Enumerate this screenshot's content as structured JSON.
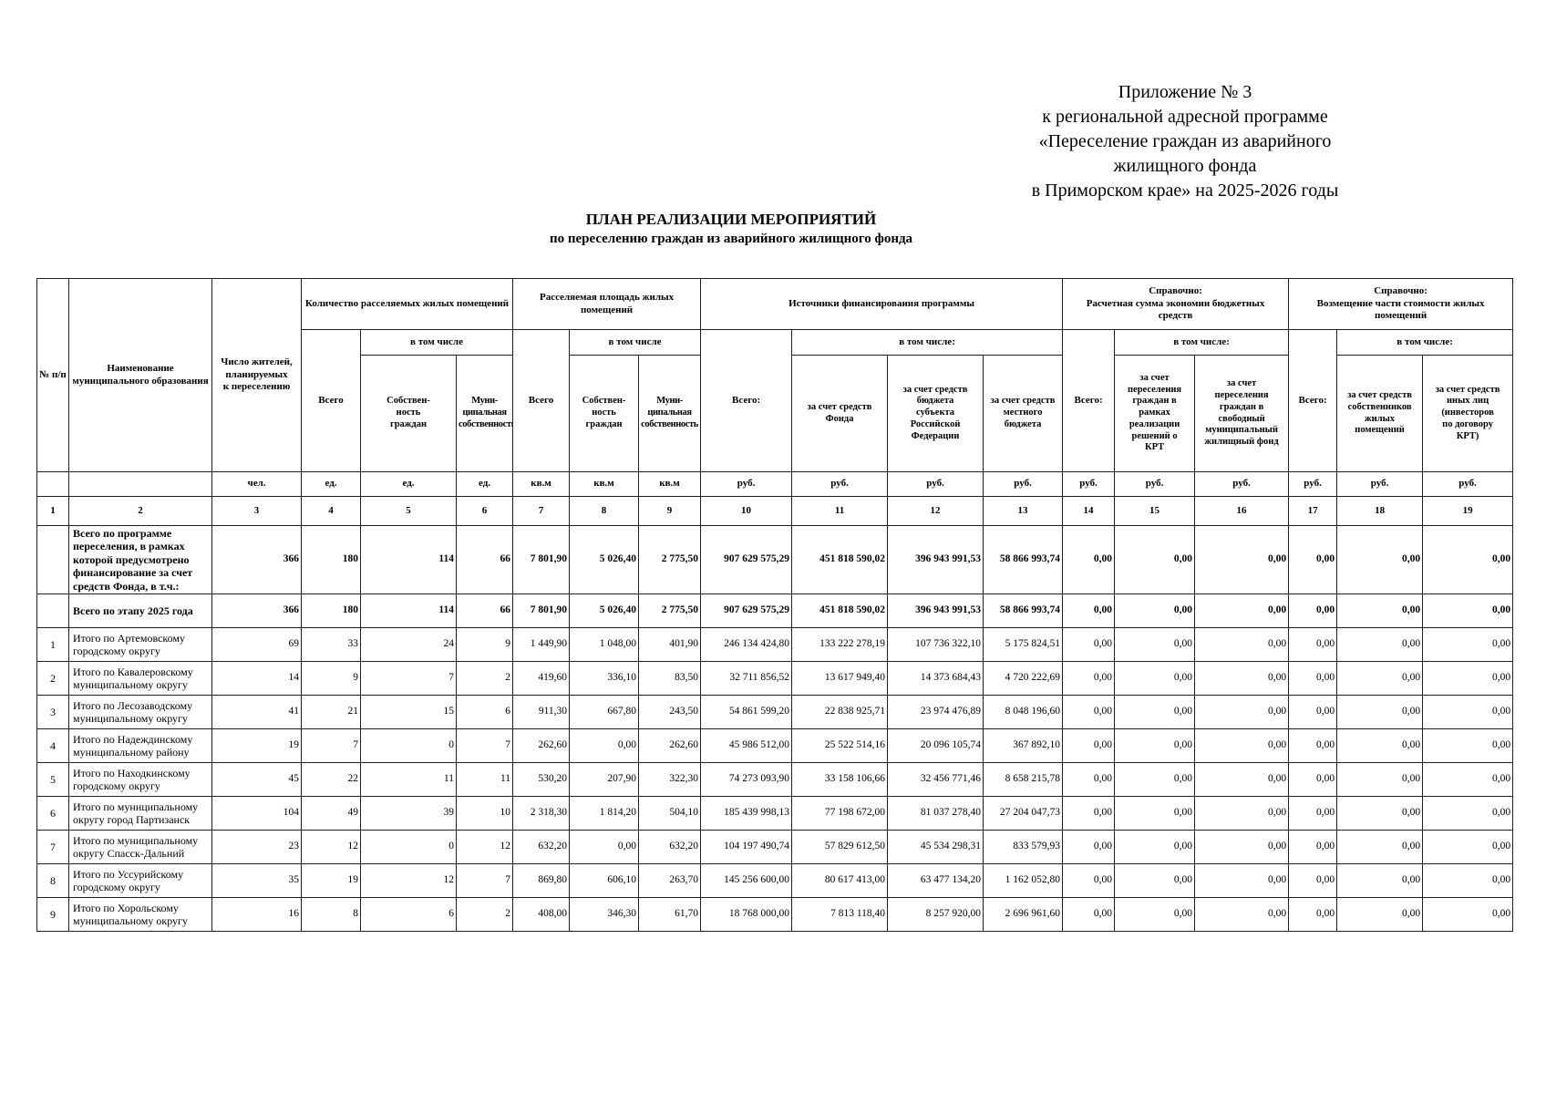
{
  "page": {
    "appendix_lines": [
      "Приложение № 3",
      "к региональной адресной программе",
      "«Переселение граждан из аварийного",
      "жилищного фонда",
      "в Приморском крае» на 2025-2026 годы"
    ],
    "title_line1": "ПЛАН РЕАЛИЗАЦИИ МЕРОПРИЯТИЙ",
    "title_line2": "по переселению граждан из аварийного жилищного фонда"
  },
  "table": {
    "headers": {
      "num": "№ п/п",
      "name": "Наименование\nмуниципального образования",
      "residents": "Число жителей,\nпланируемых\nк переселению",
      "group_premises": "Количество расселяемых жилых помещений",
      "group_area": "Расселяемая площадь жилых\nпомещений",
      "group_funding": "Источники финансирования программы",
      "group_savings": "Справочно:\nРасчетная сумма экономии бюджетных\nсредств",
      "group_reimb": "Справочно:\nВозмещение части стоимости жилых\nпомещений",
      "incl": "в том числе",
      "incl_colon": "в том числе:",
      "total": "Всего",
      "total_colon": "Всего:",
      "own_citizens": "Собствен-\nность\nграждан",
      "municipal_own": "Муни-\nципальная\nсобственность",
      "fund": "за счет средств\nФонда",
      "subject_budget": "за счет средств\nбюджета\nсубъекта\nРоссийской\nФедерации",
      "local_budget": "за счет средств\nместного\nбюджета",
      "krt_resettle": "за счет\nпереселения\nграждан в\nрамках\nреализации\nрешений о\nКРТ",
      "free_fund": "за счет\nпереселения\nграждан в\nсвободный\nмуниципальный\nжилищный фонд",
      "owners_funds": "за счет средств\nсобственников\nжилых\nпомещений",
      "other_persons": "за счет средств\nиных лиц\n(инвесторов\nпо договору\nКРТ)"
    },
    "units": [
      "",
      "",
      "чел.",
      "ед.",
      "ед.",
      "ед.",
      "кв.м",
      "кв.м",
      "кв.м",
      "руб.",
      "руб.",
      "руб.",
      "руб.",
      "руб.",
      "руб.",
      "руб.",
      "руб.",
      "руб.",
      "руб."
    ],
    "col_numbers": [
      "1",
      "2",
      "3",
      "4",
      "5",
      "6",
      "7",
      "8",
      "9",
      "10",
      "11",
      "12",
      "13",
      "14",
      "15",
      "16",
      "17",
      "18",
      "19"
    ],
    "rows": [
      {
        "num": "",
        "bold": true,
        "name": "Всего по программе переселения, в рамках которой предусмотрено финансирование за счет средств Фонда, в т.ч.:",
        "values": [
          "366",
          "180",
          "114",
          "66",
          "7 801,90",
          "5 026,40",
          "2 775,50",
          "907 629 575,29",
          "451 818 590,02",
          "396 943 991,53",
          "58 866 993,74",
          "0,00",
          "0,00",
          "0,00",
          "0,00",
          "0,00",
          "0,00"
        ]
      },
      {
        "num": "",
        "bold": true,
        "name": "Всего по этапу 2025 года",
        "values": [
          "366",
          "180",
          "114",
          "66",
          "7 801,90",
          "5 026,40",
          "2 775,50",
          "907 629 575,29",
          "451 818 590,02",
          "396 943 991,53",
          "58 866 993,74",
          "0,00",
          "0,00",
          "0,00",
          "0,00",
          "0,00",
          "0,00"
        ]
      },
      {
        "num": "1",
        "bold": false,
        "name": "Итого по Артемовскому городскому округу",
        "values": [
          "69",
          "33",
          "24",
          "9",
          "1 449,90",
          "1 048,00",
          "401,90",
          "246 134 424,80",
          "133 222 278,19",
          "107 736 322,10",
          "5 175 824,51",
          "0,00",
          "0,00",
          "0,00",
          "0,00",
          "0,00",
          "0,00"
        ]
      },
      {
        "num": "2",
        "bold": false,
        "name": "Итого по Кавалеровскому муниципальному округу",
        "values": [
          "14",
          "9",
          "7",
          "2",
          "419,60",
          "336,10",
          "83,50",
          "32 711 856,52",
          "13 617 949,40",
          "14 373 684,43",
          "4 720 222,69",
          "0,00",
          "0,00",
          "0,00",
          "0,00",
          "0,00",
          "0,00"
        ]
      },
      {
        "num": "3",
        "bold": false,
        "name": "Итого по Лесозаводскому муниципальному округу",
        "values": [
          "41",
          "21",
          "15",
          "6",
          "911,30",
          "667,80",
          "243,50",
          "54 861 599,20",
          "22 838 925,71",
          "23 974 476,89",
          "8 048 196,60",
          "0,00",
          "0,00",
          "0,00",
          "0,00",
          "0,00",
          "0,00"
        ]
      },
      {
        "num": "4",
        "bold": false,
        "name": "Итого по Надеждинскому муниципальному району",
        "values": [
          "19",
          "7",
          "0",
          "7",
          "262,60",
          "0,00",
          "262,60",
          "45 986 512,00",
          "25 522 514,16",
          "20 096 105,74",
          "367 892,10",
          "0,00",
          "0,00",
          "0,00",
          "0,00",
          "0,00",
          "0,00"
        ]
      },
      {
        "num": "5",
        "bold": false,
        "name": "Итого по Находкинскому городскому округу",
        "values": [
          "45",
          "22",
          "11",
          "11",
          "530,20",
          "207,90",
          "322,30",
          "74 273 093,90",
          "33 158 106,66",
          "32 456 771,46",
          "8 658 215,78",
          "0,00",
          "0,00",
          "0,00",
          "0,00",
          "0,00",
          "0,00"
        ]
      },
      {
        "num": "6",
        "bold": false,
        "name": "Итого по муниципальному округу город Партизанск",
        "values": [
          "104",
          "49",
          "39",
          "10",
          "2 318,30",
          "1 814,20",
          "504,10",
          "185 439 998,13",
          "77 198 672,00",
          "81 037 278,40",
          "27 204 047,73",
          "0,00",
          "0,00",
          "0,00",
          "0,00",
          "0,00",
          "0,00"
        ]
      },
      {
        "num": "7",
        "bold": false,
        "name": "Итого по муниципальному округу Спасск-Дальний",
        "values": [
          "23",
          "12",
          "0",
          "12",
          "632,20",
          "0,00",
          "632,20",
          "104 197 490,74",
          "57 829 612,50",
          "45 534 298,31",
          "833 579,93",
          "0,00",
          "0,00",
          "0,00",
          "0,00",
          "0,00",
          "0,00"
        ]
      },
      {
        "num": "8",
        "bold": false,
        "name": "Итого по Уссурийскому городскому округу",
        "values": [
          "35",
          "19",
          "12",
          "7",
          "869,80",
          "606,10",
          "263,70",
          "145 256 600,00",
          "80 617 413,00",
          "63 477 134,20",
          "1 162 052,80",
          "0,00",
          "0,00",
          "0,00",
          "0,00",
          "0,00",
          "0,00"
        ]
      },
      {
        "num": "9",
        "bold": false,
        "name": "Итого по Хорольскому муниципальному округу",
        "values": [
          "16",
          "8",
          "6",
          "2",
          "408,00",
          "346,30",
          "61,70",
          "18 768 000,00",
          "7 813 118,40",
          "8 257 920,00",
          "2 696 961,60",
          "0,00",
          "0,00",
          "0,00",
          "0,00",
          "0,00",
          "0,00"
        ]
      }
    ]
  }
}
